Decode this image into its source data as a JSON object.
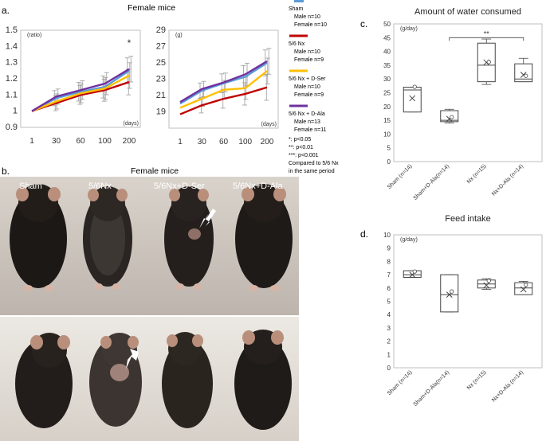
{
  "panel_labels": {
    "a": "a.",
    "b": "b.",
    "c": "c.",
    "d": "d."
  },
  "panel_a_title": "Female mice",
  "panel_b_title": "Female mice",
  "legend": {
    "entries": [
      {
        "name": "Sham",
        "detail": [
          "Male n=10",
          "Female n=10"
        ],
        "color": "#5b9bd5"
      },
      {
        "name": "5/6 Nx",
        "detail": [
          "Male n=10",
          "Female n=9"
        ],
        "color": "#c00000"
      },
      {
        "name": "5/6 Nx + D-Ser",
        "detail": [
          "Male n=10",
          "Female n=9"
        ],
        "color": "#ffc000"
      },
      {
        "name": "5/6 Nx + D-Ala",
        "detail": [
          "Male n=13",
          "Female n=11"
        ],
        "color": "#7030a0"
      }
    ],
    "significance": [
      "*: p<0.05",
      "**: p<0.01",
      "***: p<0.001"
    ],
    "note": [
      "Compared to 5/6 Nx",
      "in the same period"
    ]
  },
  "photo_labels": [
    "Sham",
    "5/6Nx",
    "5/6Nx+D-Ser",
    "5/6Nx+D-Ala"
  ],
  "chart_data": [
    {
      "type": "line",
      "panel": "a-left",
      "ylabel": "(ratio)",
      "xlabel": "(days)",
      "categories": [
        "1",
        "30",
        "60",
        "100",
        "200"
      ],
      "ylim": [
        0.9,
        1.5
      ],
      "yticks": [
        "0.9",
        "1",
        "1.1",
        "1.2",
        "1.3",
        "1.4",
        "1.5"
      ],
      "annotation": "*",
      "series": [
        {
          "color": "#5b9bd5",
          "values": [
            1.0,
            1.08,
            1.12,
            1.15,
            1.25
          ]
        },
        {
          "color": "#c00000",
          "values": [
            1.0,
            1.05,
            1.1,
            1.13,
            1.18
          ]
        },
        {
          "color": "#ffc000",
          "values": [
            1.0,
            1.06,
            1.11,
            1.14,
            1.22
          ]
        },
        {
          "color": "#7030a0",
          "values": [
            1.0,
            1.09,
            1.13,
            1.17,
            1.26
          ]
        }
      ]
    },
    {
      "type": "line",
      "panel": "a-right",
      "ylabel": "(g)",
      "xlabel": "(days)",
      "categories": [
        "1",
        "30",
        "60",
        "100",
        "200"
      ],
      "ylim": [
        17,
        29
      ],
      "yticks": [
        "19",
        "21",
        "23",
        "25",
        "27",
        "29"
      ],
      "series": [
        {
          "color": "#5b9bd5",
          "values": [
            20.0,
            21.6,
            22.5,
            23.3,
            25.0
          ]
        },
        {
          "color": "#c00000",
          "values": [
            18.7,
            19.8,
            20.6,
            21.2,
            22.0
          ]
        },
        {
          "color": "#ffc000",
          "values": [
            19.5,
            20.6,
            21.7,
            21.9,
            24.0
          ]
        },
        {
          "color": "#7030a0",
          "values": [
            20.2,
            21.8,
            22.6,
            23.6,
            25.2
          ]
        }
      ]
    },
    {
      "type": "box",
      "panel": "c",
      "title": "Amount of water consumed",
      "ylabel": "(g/day)",
      "ylim": [
        0,
        50
      ],
      "yticks": [
        "0",
        "5",
        "10",
        "15",
        "20",
        "25",
        "30",
        "35",
        "40",
        "45",
        "50"
      ],
      "categories": [
        "Sham (n=14)",
        "Sham+D-Ala(n=14)",
        "Nx (n=15)",
        "Nx+D-Ala (n=14)"
      ],
      "annotation": "**",
      "boxes": [
        {
          "min": 18,
          "q1": 18,
          "median": 26,
          "q3": 27,
          "max": 27,
          "mean": 23
        },
        {
          "min": 14,
          "q1": 14.5,
          "median": 15,
          "q3": 18.5,
          "max": 19,
          "mean": 15.5
        },
        {
          "min": 28,
          "q1": 29,
          "median": 35,
          "q3": 43,
          "max": 44.5,
          "mean": 36
        },
        {
          "min": 29,
          "q1": 29,
          "median": 30,
          "q3": 35.5,
          "max": 37.5,
          "mean": 31.5
        }
      ]
    },
    {
      "type": "box",
      "panel": "d",
      "title": "Feed intake",
      "ylabel": "(g/day)",
      "ylim": [
        0,
        10
      ],
      "yticks": [
        "0",
        "1",
        "2",
        "3",
        "4",
        "5",
        "6",
        "7",
        "8",
        "9",
        "10"
      ],
      "categories": [
        "Sham (n=14)",
        "Sham+D-Ala(n=14)",
        "Nx (n=15)",
        "Nx+D-Ala (n=14)"
      ],
      "boxes": [
        {
          "min": 6.8,
          "q1": 6.8,
          "median": 7.0,
          "q3": 7.3,
          "max": 7.3,
          "mean": 7.0
        },
        {
          "min": 4.2,
          "q1": 4.2,
          "median": 5.5,
          "q3": 7.0,
          "max": 7.0,
          "mean": 5.5
        },
        {
          "min": 5.9,
          "q1": 6.0,
          "median": 6.3,
          "q3": 6.6,
          "max": 6.7,
          "mean": 6.2
        },
        {
          "min": 5.5,
          "q1": 5.5,
          "median": 6.0,
          "q3": 6.4,
          "max": 6.5,
          "mean": 5.9
        }
      ]
    }
  ]
}
